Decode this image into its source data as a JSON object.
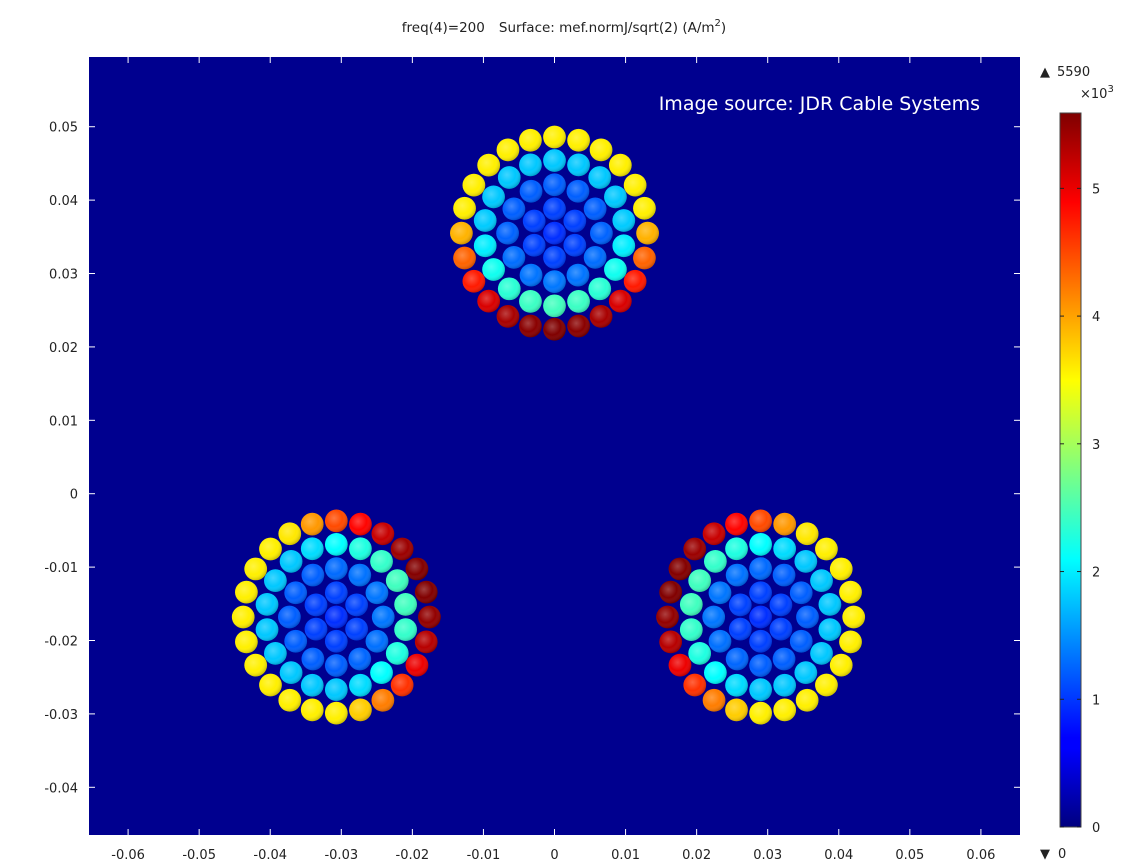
{
  "chart_data": {
    "type": "heatmap",
    "title_prefix": "freq(4)=200",
    "title_expr": "Surface: mef.normJ/sqrt(2) (A/m",
    "title_unit_sup": "2",
    "title_close": ")",
    "watermark": "Image source: JDR Cable Systems",
    "xlim": [
      -0.0655,
      0.0655
    ],
    "ylim": [
      -0.0465,
      0.0595
    ],
    "x_ticks": [
      -0.06,
      -0.05,
      -0.04,
      -0.03,
      -0.02,
      -0.01,
      0,
      0.01,
      0.02,
      0.03,
      0.04,
      0.05,
      0.06
    ],
    "x_tick_labels": [
      "-0.06",
      "-0.05",
      "-0.04",
      "-0.03",
      "-0.02",
      "-0.01",
      "0",
      "0.01",
      "0.02",
      "0.03",
      "0.04",
      "0.05",
      "0.06"
    ],
    "y_ticks": [
      -0.04,
      -0.03,
      -0.02,
      -0.01,
      0,
      0.01,
      0.02,
      0.03,
      0.04,
      0.05
    ],
    "y_tick_labels": [
      "-0.04",
      "-0.03",
      "-0.02",
      "-0.01",
      "0",
      "0.01",
      "0.02",
      "0.03",
      "0.04",
      "0.05"
    ],
    "background_color": "#00008f",
    "colorbar": {
      "max_label": "5590",
      "min_label": "0",
      "scale_base": "×10",
      "scale_exp": "3",
      "range": [
        0,
        5.59
      ],
      "ticks": [
        0,
        1,
        2,
        3,
        4,
        5
      ],
      "tick_labels": [
        "0",
        "1",
        "2",
        "3",
        "4",
        "5"
      ],
      "colormap": "jet"
    },
    "cables": [
      {
        "name": "cable-top",
        "center": [
          0.0,
          0.0355
        ],
        "radius": 0.0147,
        "strand_radius": 0.0016,
        "hot_direction_deg": -90
      },
      {
        "name": "cable-bottom-left",
        "center": [
          -0.0307,
          -0.0168
        ],
        "radius": 0.0147,
        "strand_radius": 0.0016,
        "hot_direction_deg": 20
      },
      {
        "name": "cable-bottom-right",
        "center": [
          0.029,
          -0.0168
        ],
        "radius": 0.0147,
        "strand_radius": 0.0016,
        "hot_direction_deg": 160
      }
    ],
    "strand_rings": [
      {
        "count": 1,
        "ring_radius": 0.0
      },
      {
        "count": 6,
        "ring_radius": 0.0033
      },
      {
        "count": 12,
        "ring_radius": 0.0066
      },
      {
        "count": 18,
        "ring_radius": 0.0099
      },
      {
        "count": 24,
        "ring_radius": 0.0131
      }
    ]
  }
}
